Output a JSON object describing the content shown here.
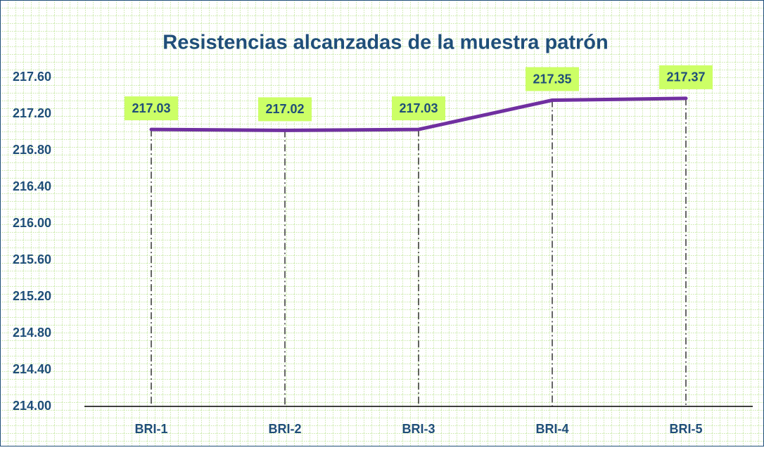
{
  "chart_data": {
    "type": "line",
    "title": "Resistencias alcanzadas de la muestra patrón",
    "categories": [
      "BRI-1",
      "BRI-2",
      "BRI-3",
      "BRI-4",
      "BRI-5"
    ],
    "values": [
      217.03,
      217.02,
      217.03,
      217.35,
      217.37
    ],
    "color": "#7030a0",
    "label_color": "#ccff66",
    "drop_lines": true,
    "ylim": [
      214,
      217.6
    ],
    "yticks": [
      {
        "value": 214,
        "label": "214.00"
      },
      {
        "value": 214.4,
        "label": "214.40"
      },
      {
        "value": 214.8,
        "label": "214.80"
      },
      {
        "value": 215.2,
        "label": "215.20"
      },
      {
        "value": 215.6,
        "label": "215.60"
      },
      {
        "value": 216,
        "label": "216.00"
      },
      {
        "value": 216.4,
        "label": "216.40"
      },
      {
        "value": 216.8,
        "label": "216.80"
      },
      {
        "value": 217.2,
        "label": "217.20"
      },
      {
        "value": 217.6,
        "label": "217.60"
      }
    ],
    "grid": false
  }
}
